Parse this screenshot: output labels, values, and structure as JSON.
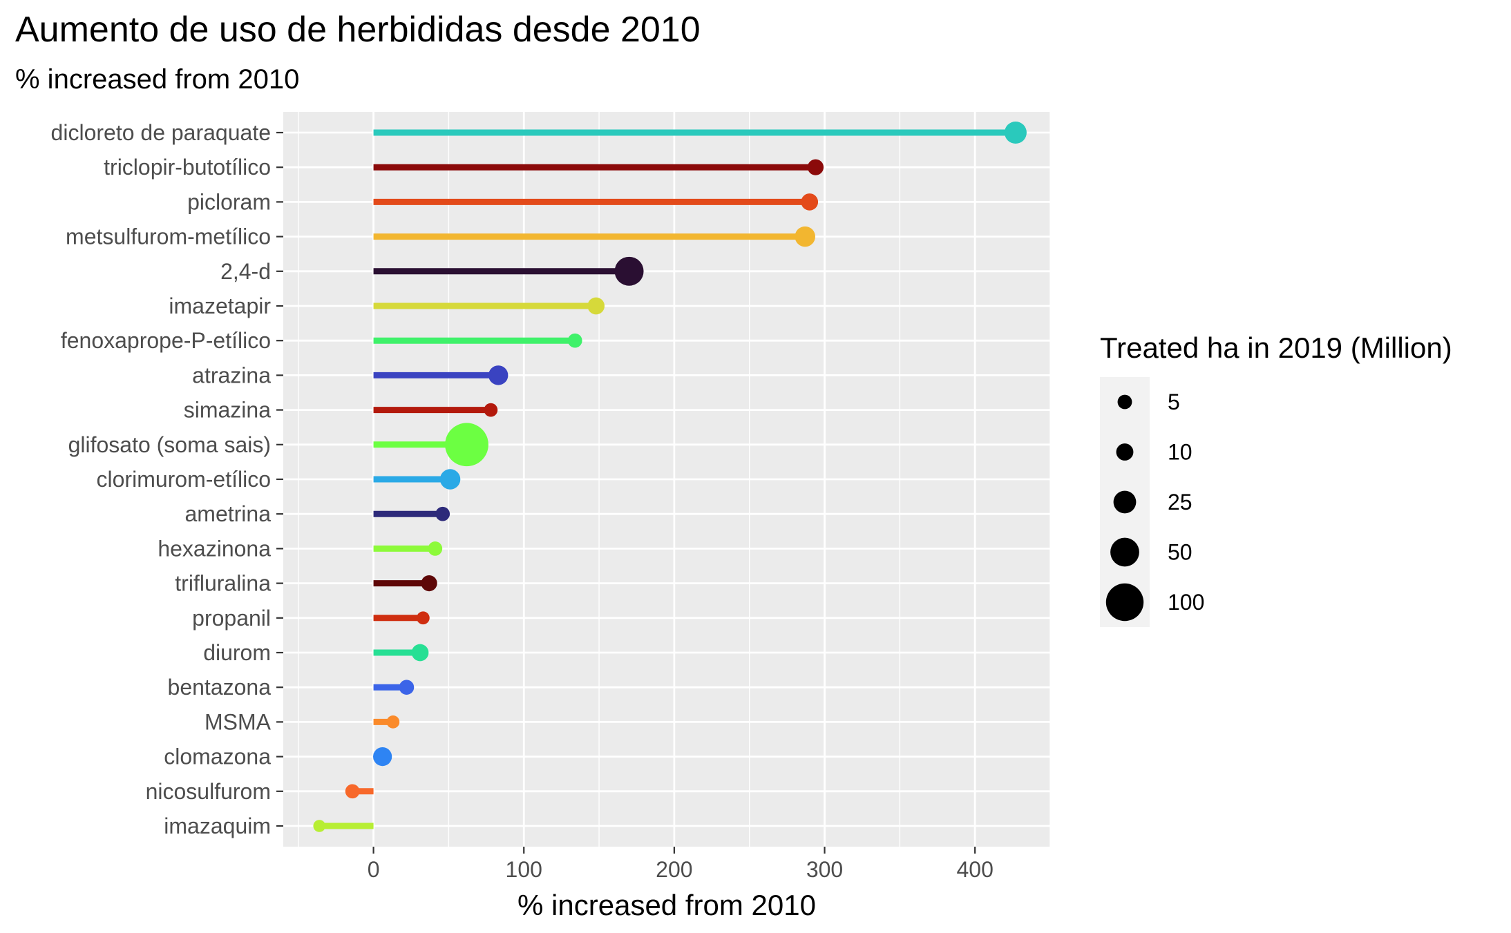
{
  "chart_data": {
    "type": "lollipop",
    "title": "Aumento de uso de herbididas desde 2010",
    "subtitle": "% increased from 2010",
    "xlabel": "% increased from 2010",
    "ylabel": "",
    "xlim": [
      -60,
      450
    ],
    "x_ticks": [
      0,
      100,
      200,
      300,
      400
    ],
    "grid": true,
    "legend": {
      "title": "Treated ha in 2019 (Million)",
      "placement": "right",
      "entries": [
        {
          "label": "5",
          "size": 5
        },
        {
          "label": "10",
          "size": 10
        },
        {
          "label": "25",
          "size": 25
        },
        {
          "label": "50",
          "size": 50
        },
        {
          "label": "100",
          "size": 100
        }
      ]
    },
    "points": [
      {
        "name": "dicloreto de paraquate",
        "value": 427,
        "treated_ha": 25,
        "color": "#2ac9bc"
      },
      {
        "name": "triclopir-butotílico",
        "value": 294,
        "treated_ha": 10,
        "color": "#8b0a0a"
      },
      {
        "name": "picloram",
        "value": 290,
        "treated_ha": 12,
        "color": "#e34a1a"
      },
      {
        "name": "metsulfurom-metílico",
        "value": 287,
        "treated_ha": 20,
        "color": "#f2b630"
      },
      {
        "name": "2,4-d",
        "value": 170,
        "treated_ha": 50,
        "color": "#2a0f32"
      },
      {
        "name": "imazetapir",
        "value": 148,
        "treated_ha": 12,
        "color": "#d6d93a"
      },
      {
        "name": "fenoxaprope-P-etílico",
        "value": 134,
        "treated_ha": 7,
        "color": "#3ff16a"
      },
      {
        "name": "atrazina",
        "value": 83,
        "treated_ha": 18,
        "color": "#3a43c1"
      },
      {
        "name": "simazina",
        "value": 78,
        "treated_ha": 6,
        "color": "#b3190c"
      },
      {
        "name": "glifosato (soma sais)",
        "value": 62,
        "treated_ha": 130,
        "color": "#6cff42"
      },
      {
        "name": "clorimurom-etílico",
        "value": 51,
        "treated_ha": 20,
        "color": "#2aa9e6"
      },
      {
        "name": "ametrina",
        "value": 46,
        "treated_ha": 7,
        "color": "#2d2a7a"
      },
      {
        "name": "hexazinona",
        "value": 41,
        "treated_ha": 7,
        "color": "#8dfa3a"
      },
      {
        "name": "trifluralina",
        "value": 37,
        "treated_ha": 10,
        "color": "#5e0707"
      },
      {
        "name": "propanil",
        "value": 33,
        "treated_ha": 5,
        "color": "#cf2e10"
      },
      {
        "name": "diurom",
        "value": 31,
        "treated_ha": 12,
        "color": "#27df94"
      },
      {
        "name": "bentazona",
        "value": 22,
        "treated_ha": 8,
        "color": "#3b64e8"
      },
      {
        "name": "MSMA",
        "value": 13,
        "treated_ha": 5,
        "color": "#fa8a2a"
      },
      {
        "name": "clomazona",
        "value": 6,
        "treated_ha": 16,
        "color": "#2e84f3"
      },
      {
        "name": "nicosulfurom",
        "value": -14,
        "treated_ha": 7,
        "color": "#f7682a"
      },
      {
        "name": "imazaquim",
        "value": -36,
        "treated_ha": 4,
        "color": "#b7ee33"
      }
    ]
  }
}
